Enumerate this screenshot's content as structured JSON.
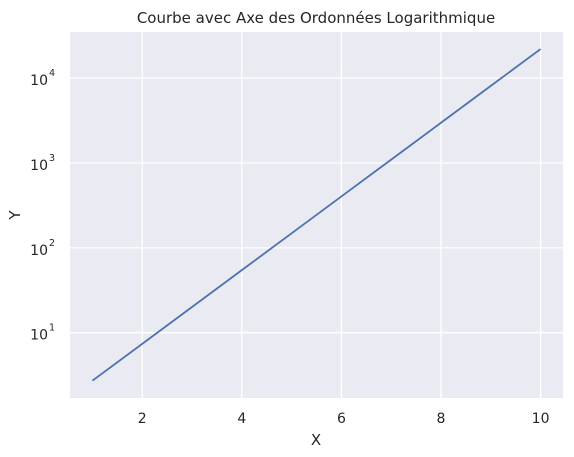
{
  "chart_data": {
    "type": "line",
    "title": "Courbe avec Axe des Ordonnées Logarithmique",
    "xlabel": "X",
    "ylabel": "Y",
    "x_ticks": [
      2,
      4,
      6,
      8,
      10
    ],
    "y_ticks": [
      {
        "base": "10",
        "exp": "1",
        "value": 10
      },
      {
        "base": "10",
        "exp": "2",
        "value": 100
      },
      {
        "base": "10",
        "exp": "3",
        "value": 1000
      },
      {
        "base": "10",
        "exp": "4",
        "value": 10000
      }
    ],
    "y_scale": "log",
    "xlim": [
      0.55,
      10.45
    ],
    "ylim": [
      1.7,
      35000
    ],
    "grid": true,
    "colors": {
      "background": "#eaeaf2",
      "grid": "#ffffff",
      "line": "#4c72b0"
    },
    "series": [
      {
        "x": [
          1,
          2,
          3,
          4,
          5,
          6,
          7,
          8,
          9,
          10
        ],
        "y": [
          2.72,
          7.39,
          20.09,
          54.6,
          148.4,
          403.4,
          1096.6,
          2981,
          8103,
          22026
        ]
      }
    ]
  }
}
